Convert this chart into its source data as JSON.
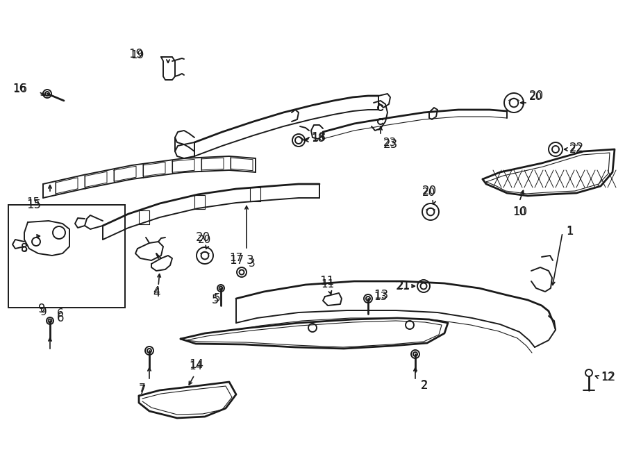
{
  "background_color": "#ffffff",
  "line_color": "#1a1a1a",
  "fig_width": 9.0,
  "fig_height": 6.61,
  "dpi": 100,
  "font_size": 11,
  "font_size_small": 9
}
